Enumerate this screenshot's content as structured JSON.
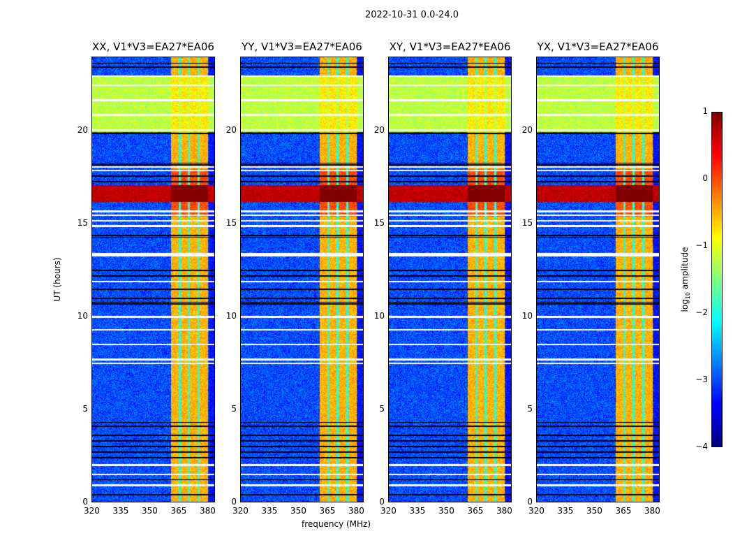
{
  "chart_data": {
    "type": "heatmap",
    "title": "2022-10-31 0.0-24.0",
    "xlabel": "frequency (MHz)",
    "ylabel": "UT (hours)",
    "xlim": [
      320,
      384
    ],
    "ylim": [
      0,
      24
    ],
    "xticks": [
      "320",
      "335",
      "350",
      "365",
      "380"
    ],
    "xtick_values": [
      320,
      335,
      350,
      365,
      380
    ],
    "yticks": [
      "0",
      "5",
      "10",
      "15",
      "20"
    ],
    "ytick_values": [
      0,
      5,
      10,
      15,
      20
    ],
    "panels": [
      {
        "title": "XX, V1*V3=EA27*EA06"
      },
      {
        "title": "YY, V1*V3=EA27*EA06"
      },
      {
        "title": "XY, V1*V3=EA27*EA06"
      },
      {
        "title": "YX, V1*V3=EA27*EA06"
      }
    ],
    "colorbar": {
      "label_prefix": "log",
      "label_sub": "10",
      "label_suffix": " amplitude",
      "colormap": "jet",
      "range": [
        -4,
        1
      ],
      "ticks": [
        "1",
        "0",
        "−1",
        "−2",
        "−3",
        "−4"
      ],
      "tick_values": [
        1,
        0,
        -1,
        -2,
        -3,
        -4
      ]
    },
    "features": {
      "background_level": -3.0,
      "bright_band_mhz": [
        361,
        380.5
      ],
      "bright_band_level": -0.5,
      "band_gaps_mhz": [
        365.8,
        370.5,
        375.6
      ],
      "daytime_block_hours": [
        20.0,
        23.0
      ],
      "daytime_level": -1.2,
      "rfi_hours": [
        16.2,
        17.1
      ],
      "rfi_level": 0.6,
      "flagged_rows_hours": [
        0.9,
        1.5,
        2.0,
        7.5,
        7.7,
        8.5,
        9.3,
        10.0,
        11.9,
        13.3,
        13.4,
        14.9,
        15.2,
        15.5,
        15.7,
        17.9,
        18.1,
        20.1,
        20.9,
        21.7,
        22.5,
        23.0
      ],
      "black_rows_hours": [
        0.4,
        1.2,
        2.4,
        2.7,
        3.0,
        3.3,
        3.6,
        4.1,
        4.3,
        10.7,
        10.8,
        11.0,
        11.5,
        12.2,
        12.5,
        14.3,
        14.4,
        17.3,
        17.6,
        18.2,
        18.3,
        19.9,
        23.5,
        23.7
      ]
    }
  }
}
